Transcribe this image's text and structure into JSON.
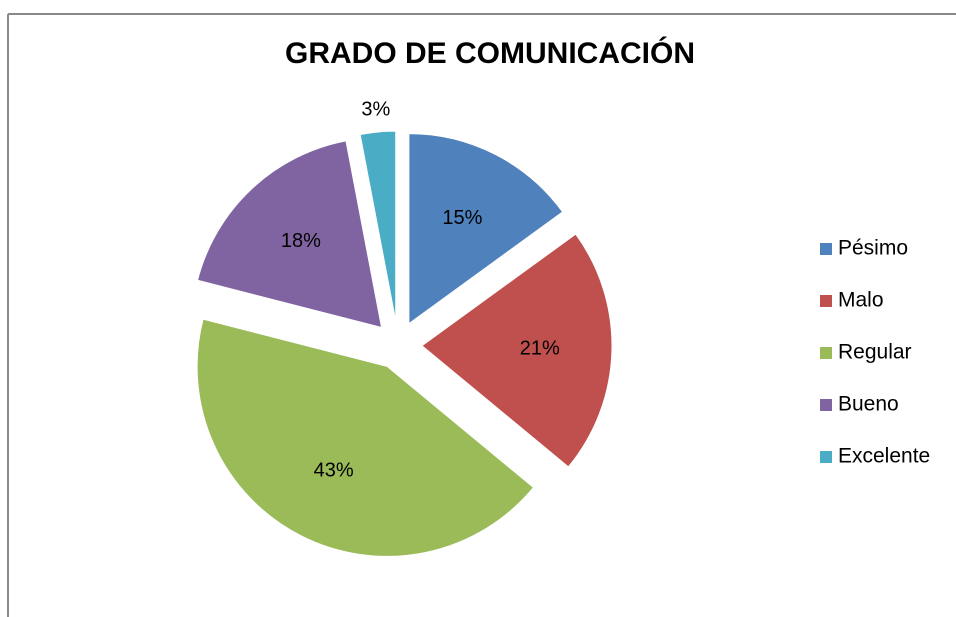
{
  "chart_data": {
    "type": "pie",
    "title": "GRADO DE COMUNICACIÓN",
    "categories": [
      "Pésimo",
      "Malo",
      "Regular",
      "Bueno",
      "Excelente"
    ],
    "values": [
      15,
      21,
      43,
      18,
      3
    ],
    "value_labels": [
      "15%",
      "21%",
      "43%",
      "18%",
      "3%"
    ],
    "colors": [
      "#4f81bd",
      "#c0504d",
      "#9bbb59",
      "#8064a2",
      "#4bacc6"
    ],
    "legend": "right"
  }
}
